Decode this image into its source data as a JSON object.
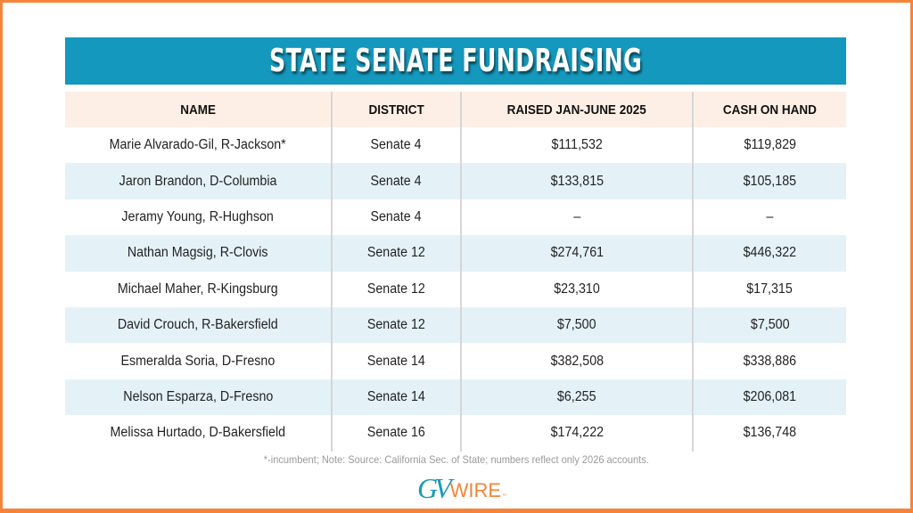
{
  "title": "STATE SENATE FUNDRAISING",
  "colors": {
    "frame": "#f5843a",
    "title_bar": "#1598bd",
    "header_bg": "#fdefe6",
    "alt_row": "#e4f2f8"
  },
  "chart_data": {
    "type": "table",
    "title": "STATE SENATE FUNDRAISING",
    "columns": [
      "NAME",
      "DISTRICT",
      "RAISED JAN-JUNE 2025",
      "CASH ON HAND"
    ],
    "rows": [
      [
        "Marie Alvarado-Gil, R-Jackson*",
        "Senate 4",
        "$111,532",
        "$119,829"
      ],
      [
        "Jaron Brandon, D-Columbia",
        "Senate 4",
        "$133,815",
        "$105,185"
      ],
      [
        "Jeramy Young, R-Hughson",
        "Senate 4",
        "–",
        "–"
      ],
      [
        "Nathan Magsig, R-Clovis",
        "Senate 12",
        "$274,761",
        "$446,322"
      ],
      [
        "Michael Maher, R-Kingsburg",
        "Senate 12",
        "$23,310",
        "$17,315"
      ],
      [
        "David Crouch, R-Bakersfield",
        "Senate 12",
        "$7,500",
        "$7,500"
      ],
      [
        "Esmeralda Soria, D-Fresno",
        "Senate 14",
        "$382,508",
        "$338,886"
      ],
      [
        "Nelson Esparza, D-Fresno",
        "Senate 14",
        "$6,255",
        "$206,081"
      ],
      [
        "Melissa Hurtado, D-Bakersfield",
        "Senate 16",
        "$174,222",
        "$136,748"
      ]
    ]
  },
  "table": {
    "headers": {
      "name": "NAME",
      "district": "DISTRICT",
      "raised": "RAISED JAN-JUNE 2025",
      "cash": "CASH ON HAND"
    },
    "rows": [
      {
        "name": "Marie Alvarado-Gil, R-Jackson*",
        "district": "Senate 4",
        "raised": "$111,532",
        "cash": "$119,829"
      },
      {
        "name": "Jaron Brandon, D-Columbia",
        "district": "Senate 4",
        "raised": "$133,815",
        "cash": "$105,185"
      },
      {
        "name": "Jeramy Young, R-Hughson",
        "district": "Senate 4",
        "raised": "–",
        "cash": "–"
      },
      {
        "name": "Nathan Magsig, R-Clovis",
        "district": "Senate 12",
        "raised": "$274,761",
        "cash": "$446,322"
      },
      {
        "name": "Michael Maher, R-Kingsburg",
        "district": "Senate 12",
        "raised": "$23,310",
        "cash": "$17,315"
      },
      {
        "name": "David Crouch, R-Bakersfield",
        "district": "Senate 12",
        "raised": "$7,500",
        "cash": "$7,500"
      },
      {
        "name": "Esmeralda Soria, D-Fresno",
        "district": "Senate 14",
        "raised": "$382,508",
        "cash": "$338,886"
      },
      {
        "name": "Nelson Esparza, D-Fresno",
        "district": "Senate 14",
        "raised": "$6,255",
        "cash": "$206,081"
      },
      {
        "name": "Melissa Hurtado, D-Bakersfield",
        "district": "Senate 16",
        "raised": "$174,222",
        "cash": "$136,748"
      }
    ]
  },
  "footnote": "*-incumbent; Note: Source: California Sec. of State; numbers reflect only 2026 accounts.",
  "logo": {
    "gv": "GV",
    "wire": "WIRE",
    "tm": "™"
  }
}
